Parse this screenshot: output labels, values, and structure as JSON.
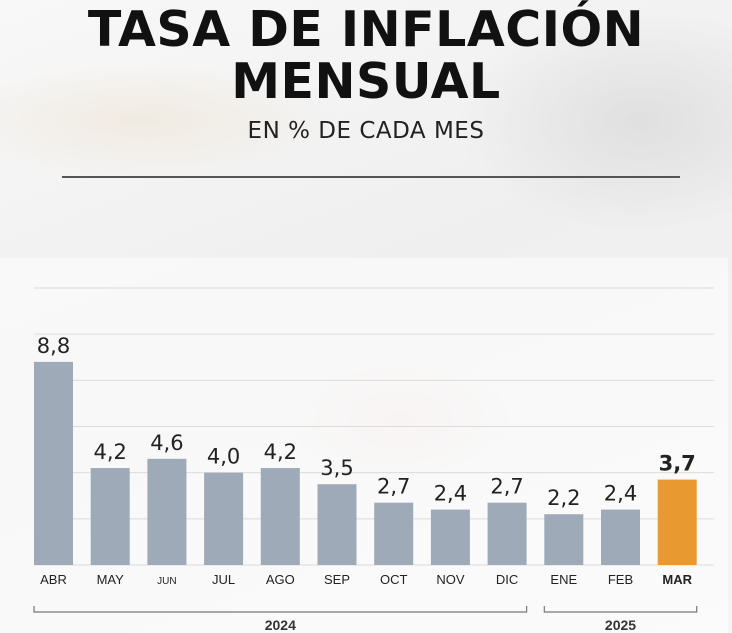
{
  "header": {
    "title_line1": "TASA DE INFLACIÓN",
    "title_line2": "MENSUAL",
    "subtitle": "EN % DE CADA MES"
  },
  "chart_data": {
    "type": "bar",
    "title": "TASA DE INFLACIÓN MENSUAL",
    "subtitle": "EN % DE CADA MES",
    "categories": [
      "ABR",
      "MAY",
      "JUN",
      "JUL",
      "AGO",
      "SEP",
      "OCT",
      "NOV",
      "DIC",
      "ENE",
      "FEB",
      "MAR"
    ],
    "values": [
      8.8,
      4.2,
      4.6,
      4.0,
      4.2,
      3.5,
      2.7,
      2.4,
      2.7,
      2.2,
      2.4,
      3.7
    ],
    "value_labels": [
      "8,8",
      "4,2",
      "4,6",
      "4,0",
      "4,2",
      "3,5",
      "2,7",
      "2,4",
      "2,7",
      "2,2",
      "2,4",
      "3,7"
    ],
    "highlight_index": 11,
    "year_groups": [
      {
        "label": "2024",
        "from": 0,
        "to": 8
      },
      {
        "label": "2025",
        "from": 9,
        "to": 11
      }
    ],
    "ylim": [
      0,
      12
    ],
    "grid": true,
    "colors": {
      "bar": "#9eaab8",
      "highlight": "#e8992f",
      "grid": "#dcdcdc"
    }
  }
}
